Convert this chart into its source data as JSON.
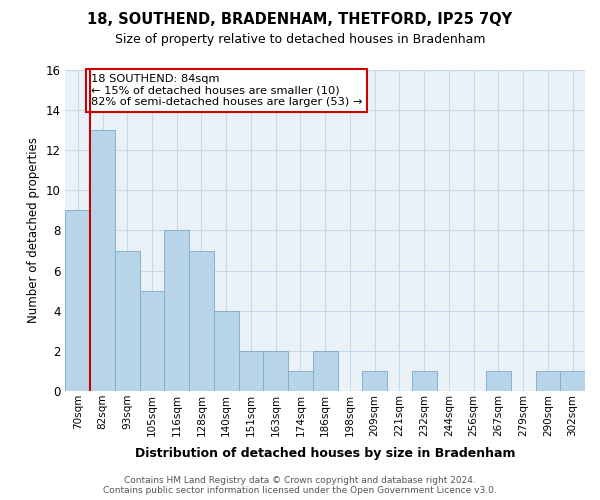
{
  "title": "18, SOUTHEND, BRADENHAM, THETFORD, IP25 7QY",
  "subtitle": "Size of property relative to detached houses in Bradenham",
  "xlabel": "Distribution of detached houses by size in Bradenham",
  "ylabel": "Number of detached properties",
  "bin_labels": [
    "70sqm",
    "82sqm",
    "93sqm",
    "105sqm",
    "116sqm",
    "128sqm",
    "140sqm",
    "151sqm",
    "163sqm",
    "174sqm",
    "186sqm",
    "198sqm",
    "209sqm",
    "221sqm",
    "232sqm",
    "244sqm",
    "256sqm",
    "267sqm",
    "279sqm",
    "290sqm",
    "302sqm"
  ],
  "bar_values": [
    9,
    13,
    7,
    5,
    8,
    7,
    4,
    2,
    2,
    1,
    2,
    0,
    1,
    0,
    1,
    0,
    0,
    1,
    0,
    1,
    1
  ],
  "bar_color": "#b8d4e8",
  "bar_edgecolor": "#7aaac8",
  "highlight_line_color": "#cc0000",
  "annotation_line1": "18 SOUTHEND: 84sqm",
  "annotation_line2": "← 15% of detached houses are smaller (10)",
  "annotation_line3": "82% of semi-detached houses are larger (53) →",
  "annotation_box_color": "#ffffff",
  "annotation_box_edgecolor": "#cc0000",
  "ylim": [
    0,
    16
  ],
  "yticks": [
    0,
    2,
    4,
    6,
    8,
    10,
    12,
    14,
    16
  ],
  "footer_text": "Contains HM Land Registry data © Crown copyright and database right 2024.\nContains public sector information licensed under the Open Government Licence v3.0.",
  "background_color": "#ffffff",
  "grid_color": "#c8d8e8",
  "title_fontsize": 10.5,
  "subtitle_fontsize": 9
}
